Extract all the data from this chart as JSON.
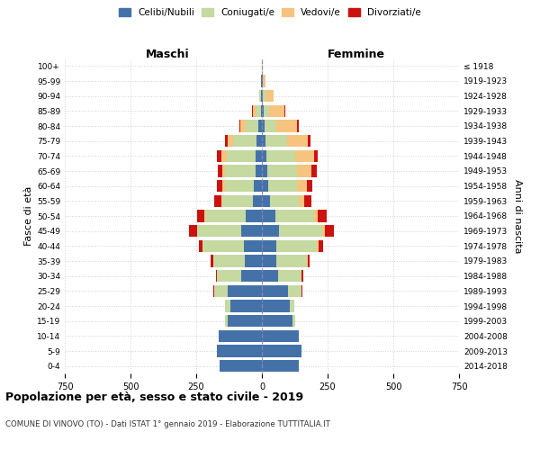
{
  "age_groups": [
    "0-4",
    "5-9",
    "10-14",
    "15-19",
    "20-24",
    "25-29",
    "30-34",
    "35-39",
    "40-44",
    "45-49",
    "50-54",
    "55-59",
    "60-64",
    "65-69",
    "70-74",
    "75-79",
    "80-84",
    "85-89",
    "90-94",
    "95-99",
    "100+"
  ],
  "birth_years": [
    "2014-2018",
    "2009-2013",
    "2004-2008",
    "1999-2003",
    "1994-1998",
    "1989-1993",
    "1984-1988",
    "1979-1983",
    "1974-1978",
    "1969-1973",
    "1964-1968",
    "1959-1963",
    "1954-1958",
    "1949-1953",
    "1944-1948",
    "1939-1943",
    "1934-1938",
    "1929-1933",
    "1924-1928",
    "1919-1923",
    "≤ 1918"
  ],
  "maschi": {
    "celibi": [
      160,
      170,
      165,
      130,
      120,
      130,
      80,
      65,
      70,
      80,
      60,
      35,
      30,
      25,
      25,
      20,
      12,
      5,
      4,
      2,
      0
    ],
    "coniugati": [
      0,
      0,
      0,
      10,
      20,
      50,
      90,
      120,
      155,
      165,
      155,
      115,
      110,
      115,
      110,
      90,
      50,
      20,
      5,
      2,
      0
    ],
    "vedovi": [
      0,
      0,
      0,
      0,
      0,
      1,
      1,
      1,
      1,
      2,
      3,
      5,
      10,
      12,
      20,
      20,
      20,
      10,
      2,
      0,
      0
    ],
    "divorziati": [
      0,
      0,
      0,
      1,
      2,
      3,
      5,
      10,
      15,
      30,
      30,
      25,
      20,
      15,
      15,
      10,
      5,
      2,
      0,
      0,
      0
    ]
  },
  "femmine": {
    "nubili": [
      140,
      150,
      140,
      115,
      105,
      100,
      60,
      55,
      55,
      65,
      50,
      30,
      25,
      20,
      18,
      15,
      10,
      6,
      5,
      3,
      0
    ],
    "coniugate": [
      0,
      0,
      0,
      10,
      20,
      50,
      90,
      115,
      155,
      165,
      150,
      110,
      110,
      115,
      110,
      80,
      45,
      20,
      8,
      2,
      0
    ],
    "vedove": [
      0,
      0,
      0,
      0,
      0,
      1,
      2,
      3,
      5,
      10,
      12,
      20,
      35,
      55,
      70,
      80,
      80,
      60,
      30,
      10,
      2
    ],
    "divorziate": [
      0,
      0,
      0,
      1,
      2,
      3,
      5,
      10,
      18,
      35,
      35,
      28,
      22,
      18,
      15,
      10,
      5,
      3,
      1,
      0,
      0
    ]
  },
  "colors": {
    "celibi": "#4472a8",
    "coniugati": "#c5d9a0",
    "vedovi": "#f6c47e",
    "divorziati": "#cc1111"
  },
  "xlim": 750,
  "title": "Popolazione per età, sesso e stato civile - 2019",
  "subtitle": "COMUNE DI VINOVO (TO) - Dati ISTAT 1° gennaio 2019 - Elaborazione TUTTITALIA.IT",
  "ylabel_left": "Fasce di età",
  "ylabel_right": "Anni di nascita",
  "xlabel_maschi": "Maschi",
  "xlabel_femmine": "Femmine",
  "bg_color": "#ffffff",
  "grid_color": "#cccccc"
}
